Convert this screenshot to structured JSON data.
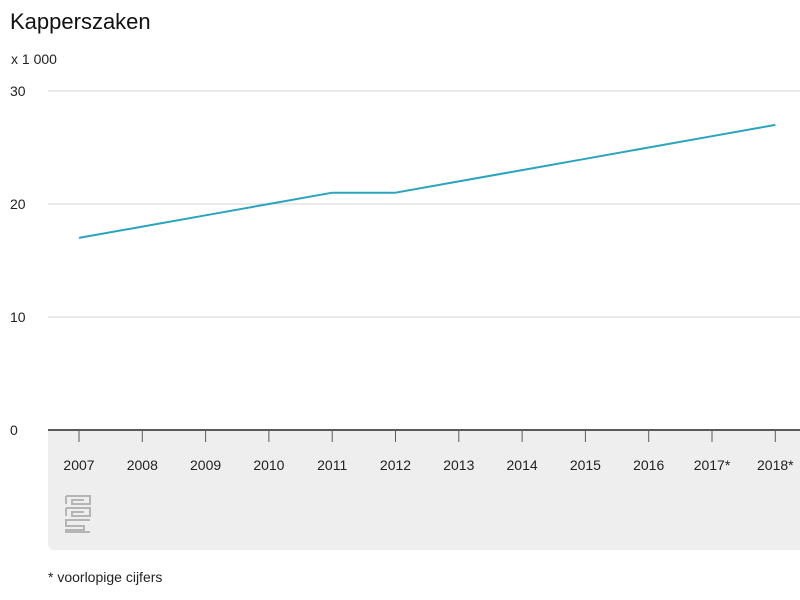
{
  "chart_data": {
    "type": "line",
    "title": "Kapperszaken",
    "unit_label": "x 1 000",
    "categories": [
      "2007",
      "2008",
      "2009",
      "2010",
      "2011",
      "2012",
      "2013",
      "2014",
      "2015",
      "2016",
      "2017*",
      "2018*"
    ],
    "series": [
      {
        "name": "Kapperszaken",
        "values": [
          17,
          18,
          19,
          20,
          21,
          21,
          22,
          23,
          24,
          25,
          26,
          27
        ]
      }
    ],
    "y_ticks": [
      "0",
      "10",
      "20",
      "30"
    ],
    "ylim": [
      0,
      30
    ],
    "grid": true,
    "line_color": "#2aa4be",
    "footnote": "* voorlopige cijfers"
  },
  "logo": {
    "name": "cbs",
    "color": "#b5b5b5"
  }
}
